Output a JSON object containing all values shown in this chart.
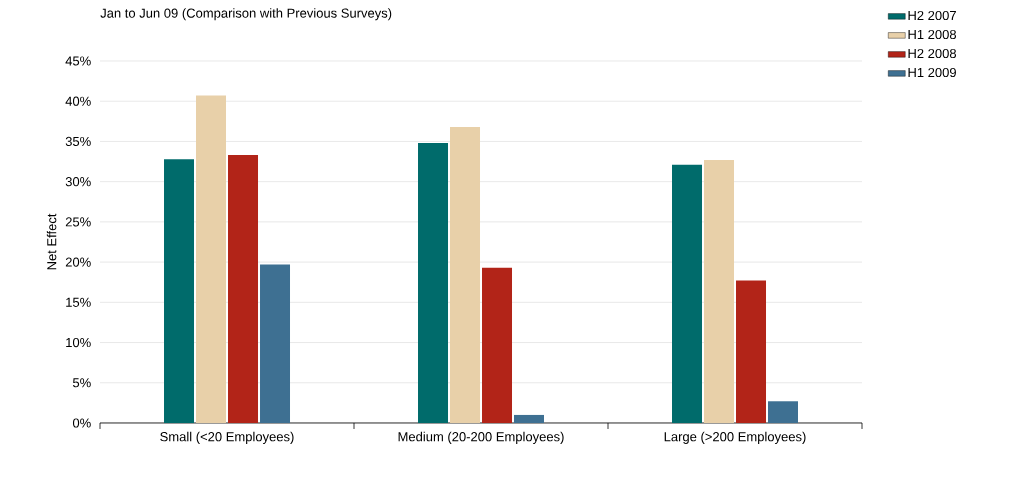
{
  "chart_data": {
    "type": "bar",
    "title": "Jan to Jun 09 (Comparison with Previous Surveys)",
    "ylabel": "Net Effect",
    "categories": [
      "Small (<20 Employees)",
      "Medium (20-200 Employees)",
      "Large (>200 Employees)"
    ],
    "series": [
      {
        "name": "H2 2007",
        "color": "#006b6b",
        "values": [
          32.8,
          34.8,
          32.1
        ]
      },
      {
        "name": "H1 2008",
        "color": "#e8d0a9",
        "values": [
          40.7,
          36.8,
          32.7
        ]
      },
      {
        "name": "H2 2008",
        "color": "#b22418",
        "values": [
          33.3,
          19.3,
          17.7
        ]
      },
      {
        "name": "H1 2009",
        "color": "#3e7092",
        "values": [
          19.7,
          1.0,
          2.7
        ]
      }
    ],
    "ylim": [
      0,
      45
    ],
    "yticks": [
      {
        "value": 0,
        "label": "0%"
      },
      {
        "value": 5,
        "label": "5%"
      },
      {
        "value": 10,
        "label": "10%"
      },
      {
        "value": 15,
        "label": "15%"
      },
      {
        "value": 20,
        "label": "20%"
      },
      {
        "value": 25,
        "label": "25%"
      },
      {
        "value": 30,
        "label": "30%"
      },
      {
        "value": 35,
        "label": "35%"
      },
      {
        "value": 40,
        "label": "40%"
      },
      {
        "value": 45,
        "label": "45%"
      }
    ],
    "grid": "y",
    "legend": "top right"
  }
}
